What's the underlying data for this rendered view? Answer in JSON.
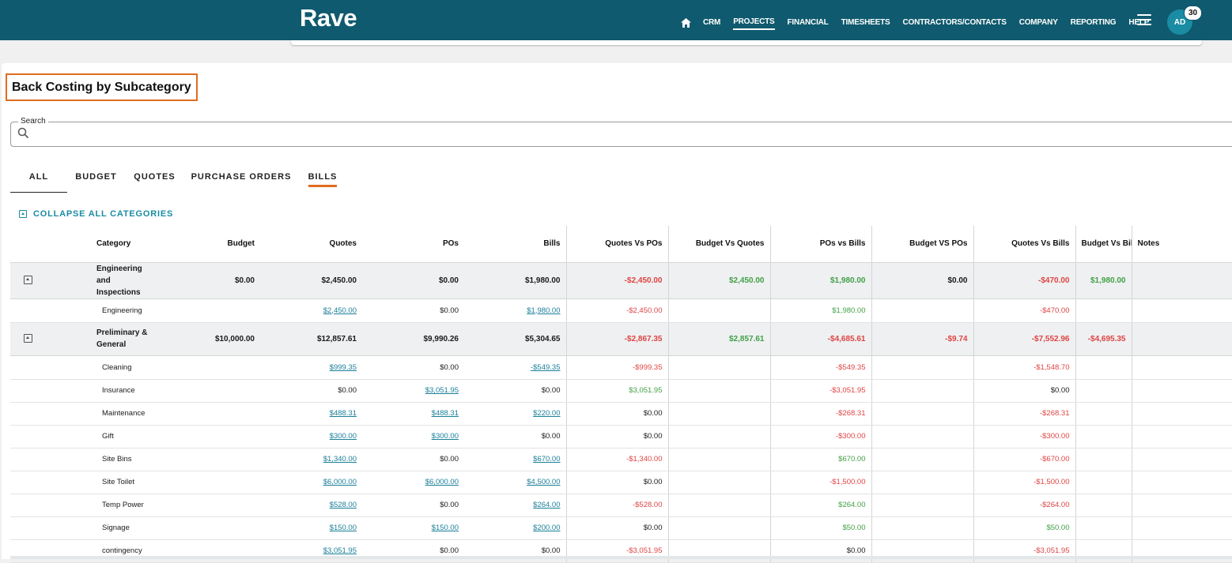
{
  "header": {
    "logo": "Rave",
    "nav": [
      {
        "label": "CRM",
        "active": false
      },
      {
        "label": "PROJECTS",
        "active": true
      },
      {
        "label": "FINANCIAL",
        "active": false
      },
      {
        "label": "TIMESHEETS",
        "active": false
      },
      {
        "label": "CONTRACTORS/CONTACTS",
        "active": false
      },
      {
        "label": "COMPANY",
        "active": false
      },
      {
        "label": "REPORTING",
        "active": false
      },
      {
        "label": "HELP",
        "active": false
      }
    ],
    "avatar_initials": "AD",
    "notification_count": "30",
    "colors": {
      "bar": "#0f5a6e",
      "accent": "#e06c1f",
      "link": "#1a7f99"
    }
  },
  "page": {
    "title": "Back Costing by Subcategory",
    "search_label": "Search",
    "search_value": "",
    "tabs": [
      {
        "label": "ALL",
        "selected": true,
        "underlined": false
      },
      {
        "label": "BUDGET",
        "selected": false,
        "underlined": false
      },
      {
        "label": "QUOTES",
        "selected": false,
        "underlined": false
      },
      {
        "label": "PURCHASE ORDERS",
        "selected": false,
        "underlined": false
      },
      {
        "label": "BILLS",
        "selected": false,
        "underlined": true
      }
    ],
    "collapse_label": "COLLAPSE ALL CATEGORIES"
  },
  "table": {
    "columns": [
      "Category",
      "Budget",
      "Quotes",
      "POs",
      "Bills",
      "Quotes Vs POs",
      "Budget Vs Quotes",
      "POs vs Bills",
      "Budget VS POs",
      "Quotes Vs Bills",
      "Budget Vs Bills",
      "Notes"
    ],
    "groups": [
      {
        "name": "Engineering and Inspections",
        "values": [
          "$0.00",
          "$2,450.00",
          "$0.00",
          "$1,980.00",
          "-$2,450.00",
          "$2,450.00",
          "$1,980.00",
          "$0.00",
          "-$470.00",
          "$1,980.00",
          ""
        ],
        "items": [
          {
            "name": "Engineering",
            "values": [
              "",
              "$2,450.00",
              "$0.00",
              "$1,980.00",
              "-$2,450.00",
              "",
              "$1,980.00",
              "",
              "-$470.00",
              "",
              ""
            ]
          }
        ]
      },
      {
        "name": "Preliminary & General",
        "values": [
          "$10,000.00",
          "$12,857.61",
          "$9,990.26",
          "$5,304.65",
          "-$2,867.35",
          "$2,857.61",
          "-$4,685.61",
          "-$9.74",
          "-$7,552.96",
          "-$4,695.35",
          ""
        ],
        "items": [
          {
            "name": "Cleaning",
            "values": [
              "",
              "$999.35",
              "$0.00",
              "-$549.35",
              "-$999.35",
              "",
              "-$549.35",
              "",
              "-$1,548.70",
              "",
              ""
            ]
          },
          {
            "name": "Insurance",
            "values": [
              "",
              "$0.00",
              "$3,051.95",
              "$0.00",
              "$3,051.95",
              "",
              "-$3,051.95",
              "",
              "$0.00",
              "",
              ""
            ]
          },
          {
            "name": "Maintenance",
            "values": [
              "",
              "$488.31",
              "$488.31",
              "$220.00",
              "$0.00",
              "",
              "-$268.31",
              "",
              "-$268.31",
              "",
              ""
            ]
          },
          {
            "name": "Gift",
            "values": [
              "",
              "$300.00",
              "$300.00",
              "$0.00",
              "$0.00",
              "",
              "-$300.00",
              "",
              "-$300.00",
              "",
              ""
            ]
          },
          {
            "name": "Site Bins",
            "values": [
              "",
              "$1,340.00",
              "$0.00",
              "$670.00",
              "-$1,340.00",
              "",
              "$670.00",
              "",
              "-$670.00",
              "",
              ""
            ]
          },
          {
            "name": "Site Toilet",
            "values": [
              "",
              "$6,000.00",
              "$6,000.00",
              "$4,500.00",
              "$0.00",
              "",
              "-$1,500.00",
              "",
              "-$1,500.00",
              "",
              ""
            ]
          },
          {
            "name": "Temp Power",
            "values": [
              "",
              "$528.00",
              "$0.00",
              "$264.00",
              "-$528.00",
              "",
              "$264.00",
              "",
              "-$264.00",
              "",
              ""
            ]
          },
          {
            "name": "Signage",
            "values": [
              "",
              "$150.00",
              "$150.00",
              "$200.00",
              "$0.00",
              "",
              "$50.00",
              "",
              "$50.00",
              "",
              ""
            ]
          },
          {
            "name": "contingency",
            "values": [
              "",
              "$3,051.95",
              "$0.00",
              "$0.00",
              "-$3,051.95",
              "",
              "$0.00",
              "",
              "-$3,051.95",
              "",
              ""
            ]
          }
        ]
      }
    ]
  }
}
